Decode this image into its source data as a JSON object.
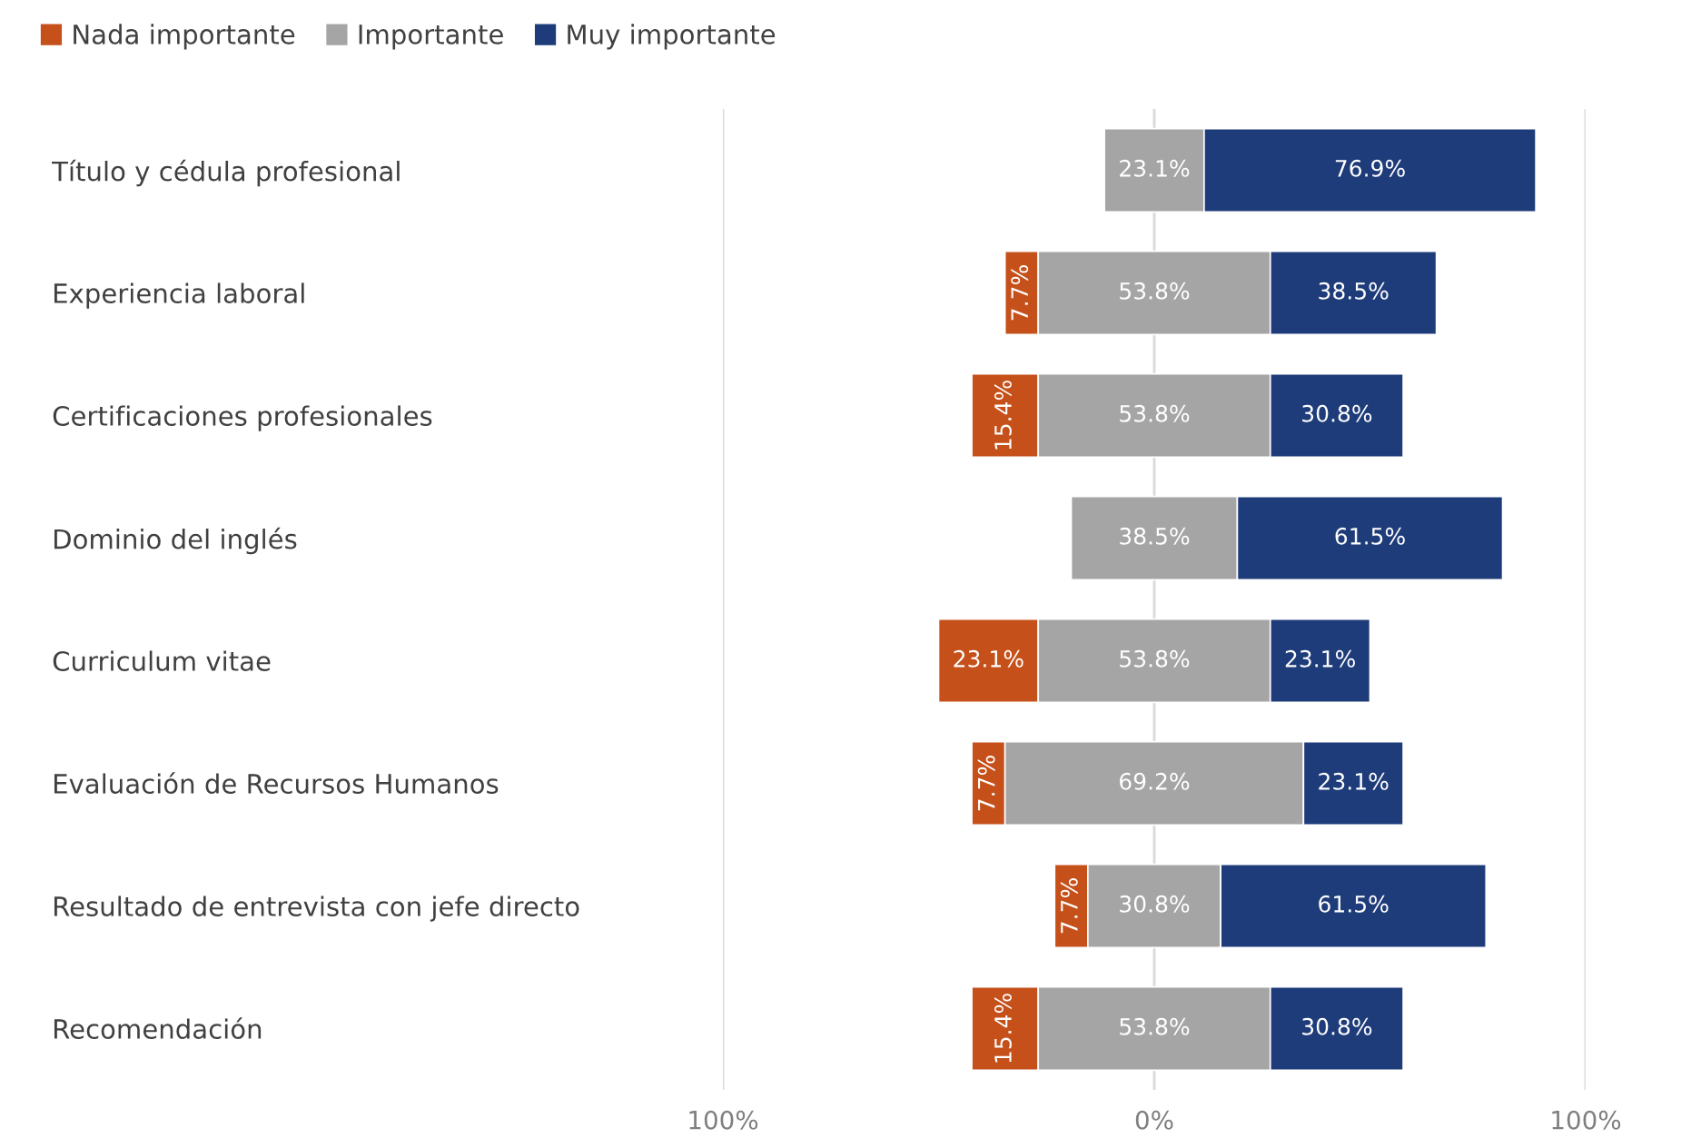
{
  "chart_data": {
    "type": "bar",
    "orientation": "horizontal",
    "categories": [
      "Título y cédula profesional",
      "Experiencia laboral",
      "Certificaciones profesionales",
      "Dominio del inglés",
      "Curriculum vitae",
      "Evaluación de Recursos Humanos",
      "Resultado de entrevista con jefe directo",
      "Recomendación"
    ],
    "series": [
      {
        "name": "Nada importante",
        "color": "#c5501a",
        "base": [
          null,
          -34.6,
          -42.3,
          null,
          -50,
          -42.3,
          -23.1,
          -42.3
        ],
        "values": [
          null,
          7.7,
          15.4,
          null,
          23.1,
          7.7,
          7.7,
          15.4
        ],
        "value_labels": [
          null,
          "7.7%",
          "15.4%",
          null,
          "23.1%",
          "7.7%",
          "7.7%",
          "15.4%"
        ]
      },
      {
        "name": "Importante",
        "color": "#a5a5a5",
        "base": [
          -11.55,
          -26.9,
          -26.9,
          -19.25,
          -26.9,
          -34.6,
          -15.4,
          -26.9
        ],
        "values": [
          23.1,
          53.8,
          53.8,
          38.5,
          53.8,
          69.2,
          30.8,
          53.8
        ],
        "value_labels": [
          "23.1%",
          "53.8%",
          "53.8%",
          "38.5%",
          "53.8%",
          "69.2%",
          "30.8%",
          "53.8%"
        ]
      },
      {
        "name": "Muy importante",
        "color": "#1f3c7a",
        "base": [
          11.55,
          26.9,
          26.9,
          19.25,
          26.9,
          34.6,
          15.4,
          26.9
        ],
        "values": [
          76.9,
          38.5,
          30.8,
          61.5,
          23.1,
          23.1,
          61.5,
          30.8
        ],
        "value_labels": [
          "76.9%",
          "38.5%",
          "30.8%",
          "61.5%",
          "23.1%",
          "23.1%",
          "61.5%",
          "30.8%"
        ]
      }
    ],
    "xlim": [
      -100,
      100
    ],
    "xticks": [
      {
        "value": -100,
        "label": "100%"
      },
      {
        "value": 0,
        "label": "0%"
      },
      {
        "value": 100,
        "label": "100%"
      }
    ],
    "grid": "x",
    "legend": "top left"
  }
}
